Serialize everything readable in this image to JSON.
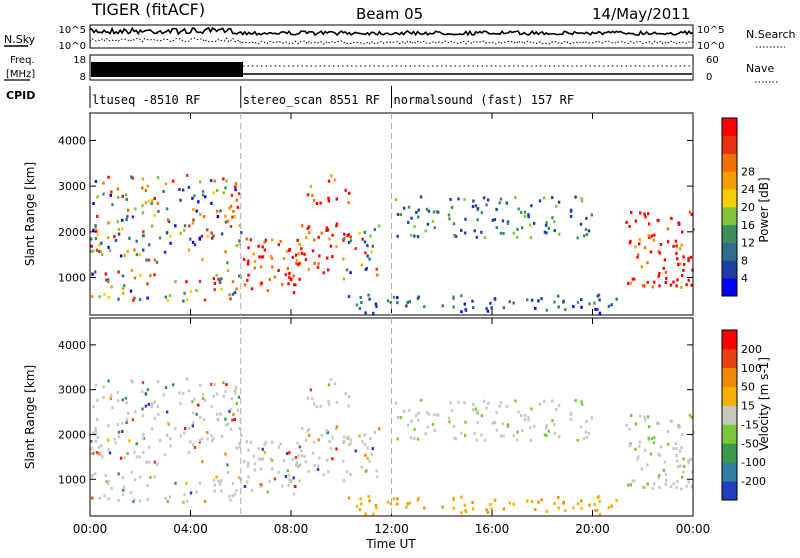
{
  "header": {
    "title": "TIGER (fitACF)",
    "beam": "Beam 05",
    "date": "14/May/2011"
  },
  "panels": {
    "nsky_label": "N.Sky",
    "nsearch_label": "N.Search",
    "freq_label": "Freq.",
    "freq_unit": "[MHz]",
    "nave_label": "Nave",
    "cpid_label": "CPID",
    "nsky_ticks": [
      "10^5",
      "10^0"
    ],
    "freq_ticks": [
      "18",
      "8"
    ],
    "nave_ticks": [
      "60",
      "0"
    ]
  },
  "cpid_segments": [
    {
      "label": "ltuseq -8510 RF",
      "start_h": 0,
      "end_h": 6
    },
    {
      "label": "stereo_scan 8551 RF",
      "start_h": 6,
      "end_h": 12
    },
    {
      "label": "normalsound (fast) 157 RF",
      "start_h": 12,
      "end_h": 24
    }
  ],
  "chart_data": [
    {
      "type": "heatmap",
      "title": "",
      "xlabel": "Time UT",
      "ylabel": "Slant Range [km]",
      "x_ticks": [
        "00:00",
        "04:00",
        "08:00",
        "12:00",
        "16:00",
        "20:00",
        "00:00"
      ],
      "xlim_hours": [
        0,
        24
      ],
      "y_ticks": [
        1000,
        2000,
        3000,
        4000
      ],
      "ylim": [
        180,
        4600
      ],
      "colorbar": {
        "label": "Power [dB]",
        "ticks": [
          4,
          8,
          12,
          16,
          20,
          24,
          28
        ],
        "colors": [
          "#0000ff",
          "#1f3fa0",
          "#2e6e8a",
          "#3c8f5a",
          "#84c23a",
          "#f2d000",
          "#f5a000",
          "#f07000",
          "#e83010",
          "#ff0000"
        ]
      }
    },
    {
      "type": "heatmap",
      "title": "",
      "xlabel": "Time UT",
      "ylabel": "Slant Range [km]",
      "x_ticks": [
        "00:00",
        "04:00",
        "08:00",
        "12:00",
        "16:00",
        "20:00",
        "00:00"
      ],
      "xlim_hours": [
        0,
        24
      ],
      "y_ticks": [
        1000,
        2000,
        3000,
        4000
      ],
      "ylim": [
        180,
        4600
      ],
      "colorbar": {
        "label": "Velocity [m s-1]",
        "ticks": [
          "200",
          "100",
          "50",
          "15",
          "-15",
          "-50",
          "-100",
          "-200"
        ],
        "colors": [
          "#1f3fc0",
          "#2f7f9f",
          "#3a9a4a",
          "#7ac83a",
          "#c8c8c0",
          "#f5b000",
          "#f08a00",
          "#e84010",
          "#ff0000"
        ]
      }
    }
  ],
  "colors": {
    "ground_scatter": "#c8c8c0"
  }
}
